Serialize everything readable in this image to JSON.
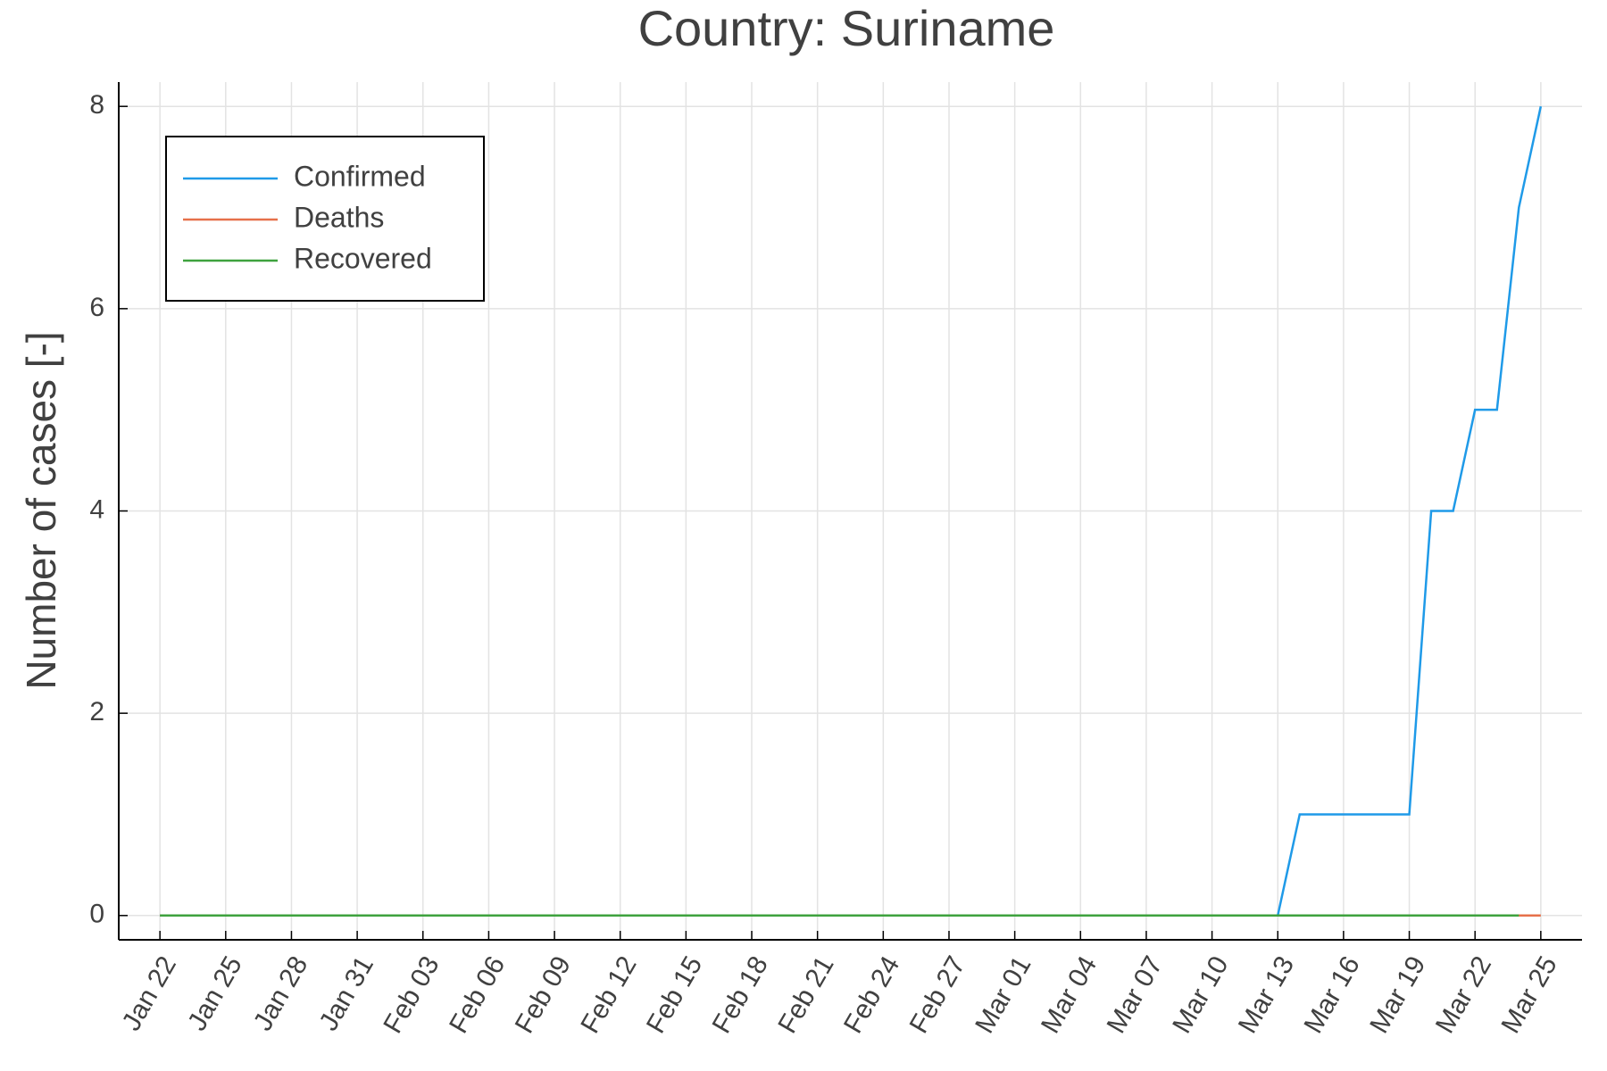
{
  "chart_data": {
    "type": "line",
    "title": "Country: Suriname",
    "y_label": "Number of cases [-]",
    "categories": [
      "Jan 22",
      null,
      null,
      "Jan 25",
      null,
      null,
      "Jan 28",
      null,
      null,
      "Jan 31",
      null,
      null,
      "Feb 03",
      null,
      null,
      "Feb 06",
      null,
      null,
      "Feb 09",
      null,
      null,
      "Feb 12",
      null,
      null,
      "Feb 15",
      null,
      null,
      "Feb 18",
      null,
      null,
      "Feb 21",
      null,
      null,
      "Feb 24",
      null,
      null,
      "Feb 27",
      null,
      null,
      "Mar 01",
      null,
      null,
      "Mar 04",
      null,
      null,
      "Mar 07",
      null,
      null,
      "Mar 10",
      null,
      null,
      "Mar 13",
      null,
      null,
      "Mar 16",
      null,
      null,
      "Mar 19",
      null,
      null,
      "Mar 22",
      null,
      null,
      "Mar 25"
    ],
    "series": [
      {
        "name": "Confirmed",
        "color": "#1f9ae8",
        "values": [
          0,
          0,
          0,
          0,
          0,
          0,
          0,
          0,
          0,
          0,
          0,
          0,
          0,
          0,
          0,
          0,
          0,
          0,
          0,
          0,
          0,
          0,
          0,
          0,
          0,
          0,
          0,
          0,
          0,
          0,
          0,
          0,
          0,
          0,
          0,
          0,
          0,
          0,
          0,
          0,
          0,
          0,
          0,
          0,
          0,
          0,
          0,
          0,
          0,
          0,
          0,
          0,
          1,
          1,
          1,
          1,
          1,
          1,
          4,
          4,
          5,
          5,
          7,
          8
        ]
      },
      {
        "name": "Deaths",
        "color": "#e6704a",
        "values": [
          0,
          0,
          0,
          0,
          0,
          0,
          0,
          0,
          0,
          0,
          0,
          0,
          0,
          0,
          0,
          0,
          0,
          0,
          0,
          0,
          0,
          0,
          0,
          0,
          0,
          0,
          0,
          0,
          0,
          0,
          0,
          0,
          0,
          0,
          0,
          0,
          0,
          0,
          0,
          0,
          0,
          0,
          0,
          0,
          0,
          0,
          0,
          0,
          0,
          0,
          0,
          0,
          0,
          0,
          0,
          0,
          0,
          0,
          0,
          0,
          0,
          0,
          0,
          0
        ]
      },
      {
        "name": "Recovered",
        "color": "#3ea23e",
        "values": [
          0,
          0,
          0,
          0,
          0,
          0,
          0,
          0,
          0,
          0,
          0,
          0,
          0,
          0,
          0,
          0,
          0,
          0,
          0,
          0,
          0,
          0,
          0,
          0,
          0,
          0,
          0,
          0,
          0,
          0,
          0,
          0,
          0,
          0,
          0,
          0,
          0,
          0,
          0,
          0,
          0,
          0,
          0,
          0,
          0,
          0,
          0,
          0,
          0,
          0,
          0,
          0,
          0,
          0,
          0,
          0,
          0,
          0,
          0,
          0,
          0,
          0,
          0,
          null
        ]
      }
    ],
    "ylim": [
      -0.24,
      8.24
    ],
    "yticks": [
      0,
      2,
      4,
      6,
      8
    ],
    "grid": true,
    "legend": "top-left"
  }
}
